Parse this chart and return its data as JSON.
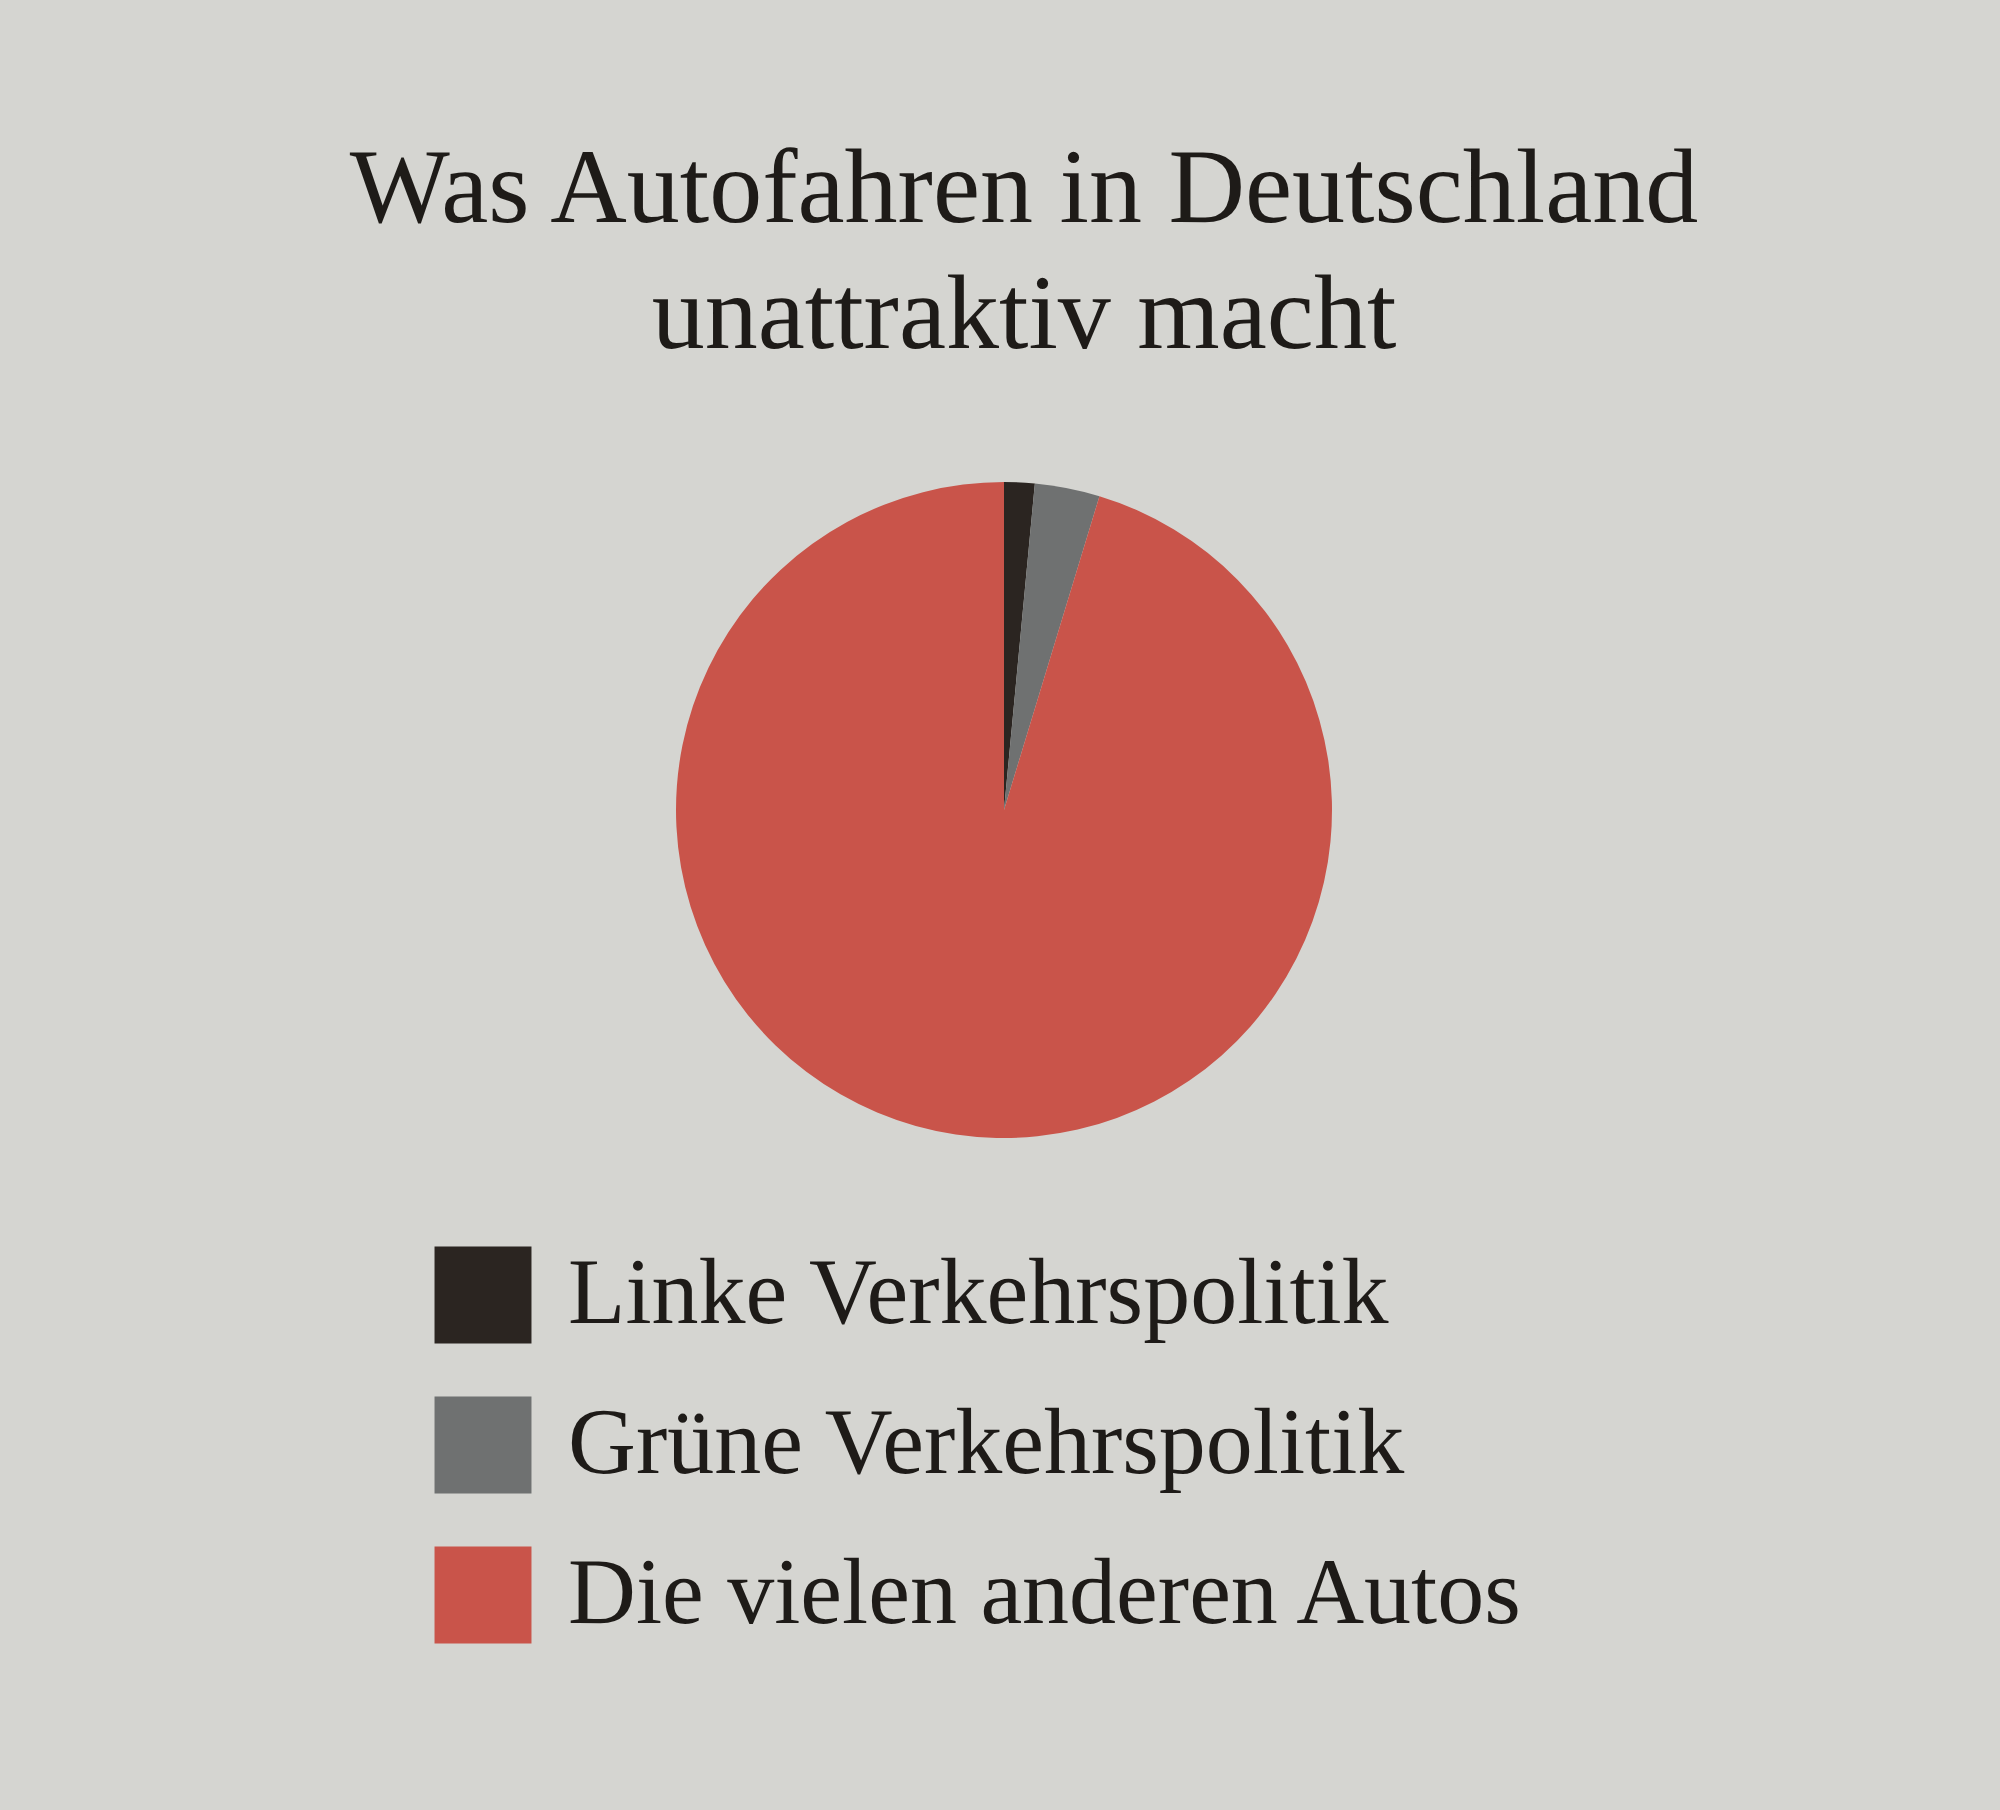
{
  "chart_data": {
    "type": "pie",
    "title": "Was Autofahren in Deutschland\nunattraktiv macht",
    "categories": [
      "Linke Verkehrspolitik",
      "Grüne Verkehrspolitik",
      "Die vielen anderen Autos"
    ],
    "values": [
      1.5,
      3.2,
      95.3
    ],
    "colors": [
      "#2b2521",
      "#6f7171",
      "#c9544a"
    ],
    "legend": "bottom"
  }
}
